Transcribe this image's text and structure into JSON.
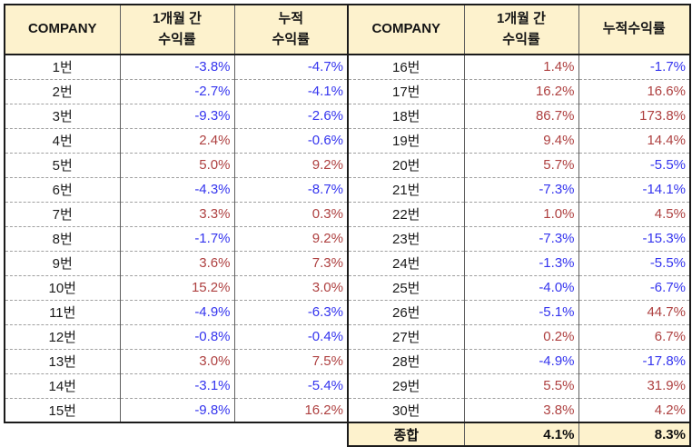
{
  "colors": {
    "header_background": "#FDF2CD",
    "negative_value_text": "#3434EE",
    "positive_value_text": "#AE4040",
    "grid_outer_border": "#1B1B1B",
    "grid_inner_vertical_border": "#5F5F5F",
    "row_divider_dashed": "#9F9F9F"
  },
  "left_table": {
    "headers": [
      "COMPANY",
      "1개월 간\n수익률",
      "누적\n수익률"
    ],
    "rows": [
      {
        "company": "1번",
        "monthly": "-3.8%",
        "cumulative": "-4.7%"
      },
      {
        "company": "2번",
        "monthly": "-2.7%",
        "cumulative": "-4.1%"
      },
      {
        "company": "3번",
        "monthly": "-9.3%",
        "cumulative": "-2.6%"
      },
      {
        "company": "4번",
        "monthly": "2.4%",
        "cumulative": "-0.6%"
      },
      {
        "company": "5번",
        "monthly": "5.0%",
        "cumulative": "9.2%"
      },
      {
        "company": "6번",
        "monthly": "-4.3%",
        "cumulative": "-8.7%"
      },
      {
        "company": "7번",
        "monthly": "3.3%",
        "cumulative": "0.3%"
      },
      {
        "company": "8번",
        "monthly": "-1.7%",
        "cumulative": "9.2%"
      },
      {
        "company": "9번",
        "monthly": "3.6%",
        "cumulative": "7.3%"
      },
      {
        "company": "10번",
        "monthly": "15.2%",
        "cumulative": "3.0%"
      },
      {
        "company": "11번",
        "monthly": "-4.9%",
        "cumulative": "-6.3%"
      },
      {
        "company": "12번",
        "monthly": "-0.8%",
        "cumulative": "-0.4%"
      },
      {
        "company": "13번",
        "monthly": "3.0%",
        "cumulative": "7.5%"
      },
      {
        "company": "14번",
        "monthly": "-3.1%",
        "cumulative": "-5.4%"
      },
      {
        "company": "15번",
        "monthly": "-9.8%",
        "cumulative": "16.2%"
      }
    ]
  },
  "right_table": {
    "headers": [
      "COMPANY",
      "1개월 간\n수익률",
      "누적수익률"
    ],
    "rows": [
      {
        "company": "16번",
        "monthly": "1.4%",
        "cumulative": "-1.7%"
      },
      {
        "company": "17번",
        "monthly": "16.2%",
        "cumulative": "16.6%"
      },
      {
        "company": "18번",
        "monthly": "86.7%",
        "cumulative": "173.8%"
      },
      {
        "company": "19번",
        "monthly": "9.4%",
        "cumulative": "14.4%"
      },
      {
        "company": "20번",
        "monthly": "5.7%",
        "cumulative": "-5.5%"
      },
      {
        "company": "21번",
        "monthly": "-7.3%",
        "cumulative": "-14.1%"
      },
      {
        "company": "22번",
        "monthly": "1.0%",
        "cumulative": "4.5%"
      },
      {
        "company": "23번",
        "monthly": "-7.3%",
        "cumulative": "-15.3%"
      },
      {
        "company": "24번",
        "monthly": "-1.3%",
        "cumulative": "-5.5%"
      },
      {
        "company": "25번",
        "monthly": "-4.0%",
        "cumulative": "-6.7%"
      },
      {
        "company": "26번",
        "monthly": "-5.1%",
        "cumulative": "44.7%"
      },
      {
        "company": "27번",
        "monthly": "0.2%",
        "cumulative": "6.7%"
      },
      {
        "company": "28번",
        "monthly": "-4.9%",
        "cumulative": "-17.8%"
      },
      {
        "company": "29번",
        "monthly": "5.5%",
        "cumulative": "31.9%"
      },
      {
        "company": "30번",
        "monthly": "3.8%",
        "cumulative": "4.2%"
      }
    ],
    "total": {
      "label": "종합",
      "monthly": "4.1%",
      "cumulative": "8.3%"
    }
  },
  "chart_data": {
    "type": "table",
    "value_unit": "%",
    "color_coding": {
      "positive_values": "red",
      "negative_values": "blue",
      "totals": "black-bold"
    },
    "tables": [
      {
        "headers": [
          "COMPANY",
          "1개월 간 수익률",
          "누적 수익률"
        ],
        "rows": [
          [
            "1번",
            -3.8,
            -4.7
          ],
          [
            "2번",
            -2.7,
            -4.1
          ],
          [
            "3번",
            -9.3,
            -2.6
          ],
          [
            "4번",
            2.4,
            -0.6
          ],
          [
            "5번",
            5.0,
            9.2
          ],
          [
            "6번",
            -4.3,
            -8.7
          ],
          [
            "7번",
            3.3,
            0.3
          ],
          [
            "8번",
            -1.7,
            9.2
          ],
          [
            "9번",
            3.6,
            7.3
          ],
          [
            "10번",
            15.2,
            3.0
          ],
          [
            "11번",
            -4.9,
            -6.3
          ],
          [
            "12번",
            -0.8,
            -0.4
          ],
          [
            "13번",
            3.0,
            7.5
          ],
          [
            "14번",
            -3.1,
            -5.4
          ],
          [
            "15번",
            -9.8,
            16.2
          ]
        ]
      },
      {
        "headers": [
          "COMPANY",
          "1개월 간 수익률",
          "누적수익률"
        ],
        "rows": [
          [
            "16번",
            1.4,
            -1.7
          ],
          [
            "17번",
            16.2,
            16.6
          ],
          [
            "18번",
            86.7,
            173.8
          ],
          [
            "19번",
            9.4,
            14.4
          ],
          [
            "20번",
            5.7,
            -5.5
          ],
          [
            "21번",
            -7.3,
            -14.1
          ],
          [
            "22번",
            1.0,
            4.5
          ],
          [
            "23번",
            -7.3,
            -15.3
          ],
          [
            "24번",
            -1.3,
            -5.5
          ],
          [
            "25번",
            -4.0,
            -6.7
          ],
          [
            "26번",
            -5.1,
            44.7
          ],
          [
            "27번",
            0.2,
            6.7
          ],
          [
            "28번",
            -4.9,
            -17.8
          ],
          [
            "29번",
            5.5,
            31.9
          ],
          [
            "30번",
            3.8,
            4.2
          ]
        ],
        "total_row": [
          "종합",
          4.1,
          8.3
        ]
      }
    ]
  }
}
